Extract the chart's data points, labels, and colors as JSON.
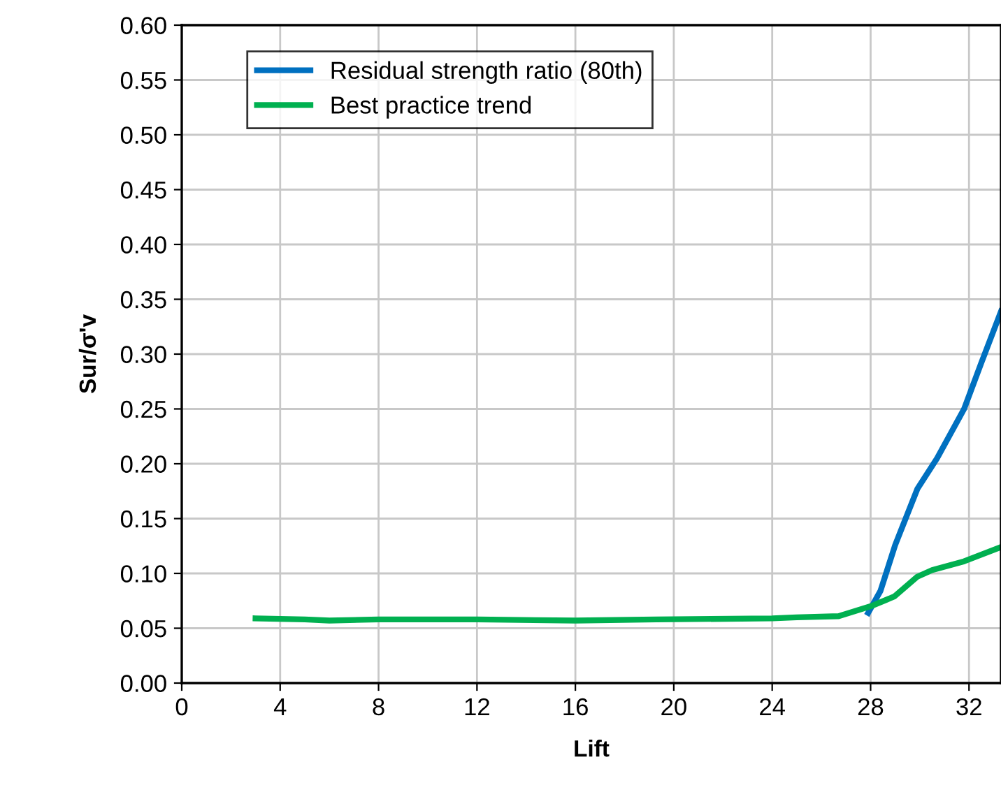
{
  "chart_data": {
    "type": "line",
    "xlabel": "Lift",
    "ylabel": "Sur/σ'v",
    "xlim": [
      0,
      33.3
    ],
    "ylim": [
      0,
      0.6
    ],
    "xticks": [
      0,
      4,
      8,
      12,
      16,
      20,
      24,
      28,
      32
    ],
    "yticks": [
      {
        "value": 0,
        "label": "0.00"
      },
      {
        "value": 0.05,
        "label": "0.05"
      },
      {
        "value": 0.1,
        "label": "0.10"
      },
      {
        "value": 0.15,
        "label": "0.15"
      },
      {
        "value": 0.2,
        "label": "0.20"
      },
      {
        "value": 0.25,
        "label": "0.25"
      },
      {
        "value": 0.3,
        "label": "0.30"
      },
      {
        "value": 0.35,
        "label": "0.35"
      },
      {
        "value": 0.4,
        "label": "0.40"
      },
      {
        "value": 0.45,
        "label": "0.45"
      },
      {
        "value": 0.5,
        "label": "0.50"
      },
      {
        "value": 0.55,
        "label": "0.55"
      },
      {
        "value": 0.6,
        "label": "0.60"
      }
    ],
    "grid": true,
    "legend": "top left",
    "marker": "none",
    "line_style": "solid",
    "series": [
      {
        "name": "Residual strength ratio (80th)",
        "color": "#0070c0",
        "x": [
          27.9,
          28.4,
          29.0,
          29.9,
          30.7,
          31.8,
          32.5,
          33.3
        ],
        "values": [
          0.064,
          0.084,
          0.126,
          0.177,
          0.205,
          0.25,
          0.292,
          0.339
        ]
      },
      {
        "name": "Best practice trend",
        "color": "#00b050",
        "x": [
          3,
          5,
          6,
          8,
          12,
          16,
          19.3,
          24,
          25,
          26.7,
          28.0,
          28.97,
          29.9,
          30.5,
          31.8,
          33.3
        ],
        "values": [
          0.059,
          0.058,
          0.057,
          0.058,
          0.058,
          0.057,
          0.058,
          0.059,
          0.06,
          0.061,
          0.07,
          0.079,
          0.097,
          0.103,
          0.111,
          0.124
        ]
      }
    ]
  }
}
